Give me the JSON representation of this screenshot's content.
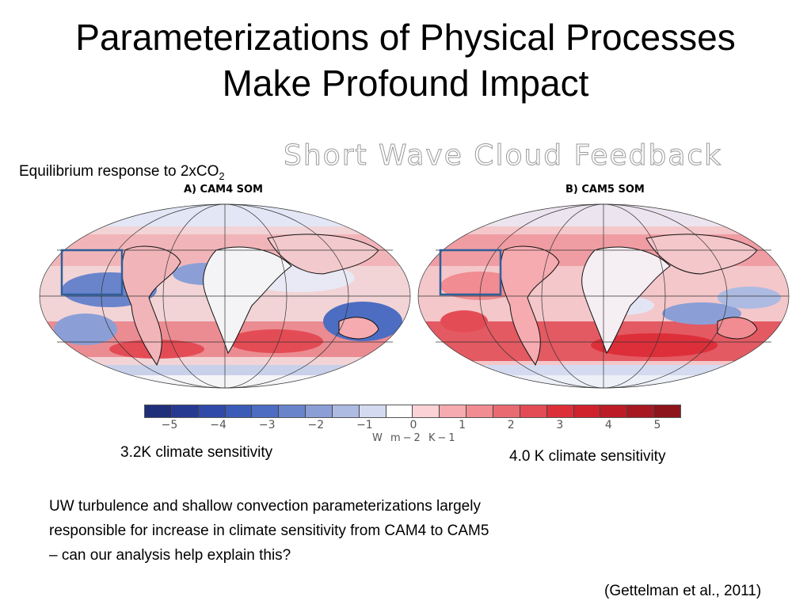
{
  "slide": {
    "title_line1": "Parameterizations of Physical Processes",
    "title_line2": "Make Profound Impact",
    "figure_title": "Short Wave Cloud Feedback",
    "eq_label_main": "Equilibrium response to 2xCO",
    "eq_label_sub": "2",
    "map_a_label": "A) CAM4 SOM",
    "map_b_label": "B) CAM5 SOM",
    "colorbar_ticks": [
      "−5",
      "−4",
      "−3",
      "−2",
      "−1",
      "0",
      "1",
      "2",
      "3",
      "4",
      "5"
    ],
    "colorbar_units": "W m−2 K−1",
    "sensitivity_left": "3.2K climate sensitivity",
    "sensitivity_right": "4.0 K climate sensitivity",
    "note": "UW turbulence and shallow convection parameterizations largely responsible for increase in climate sensitivity from CAM4 to CAM5 – can our analysis help explain this?",
    "citation": "(Gettelman et al., 2011)"
  },
  "colors": {
    "colorbar": [
      "#1f2f7a",
      "#263a92",
      "#2f4aa8",
      "#3a5bb8",
      "#4d6dc2",
      "#6a84cc",
      "#8b9fd6",
      "#adbbe2",
      "#d4dbf0",
      "#ffffff",
      "#fbd3d6",
      "#f6abb0",
      "#f08c92",
      "#ea6a72",
      "#e44c55",
      "#dd2f3a",
      "#d0222d",
      "#bd1c26",
      "#a81821",
      "#8e141b"
    ],
    "map_ocean_base": "#f3c9cc",
    "highlight_box": "#2f5f9a"
  }
}
